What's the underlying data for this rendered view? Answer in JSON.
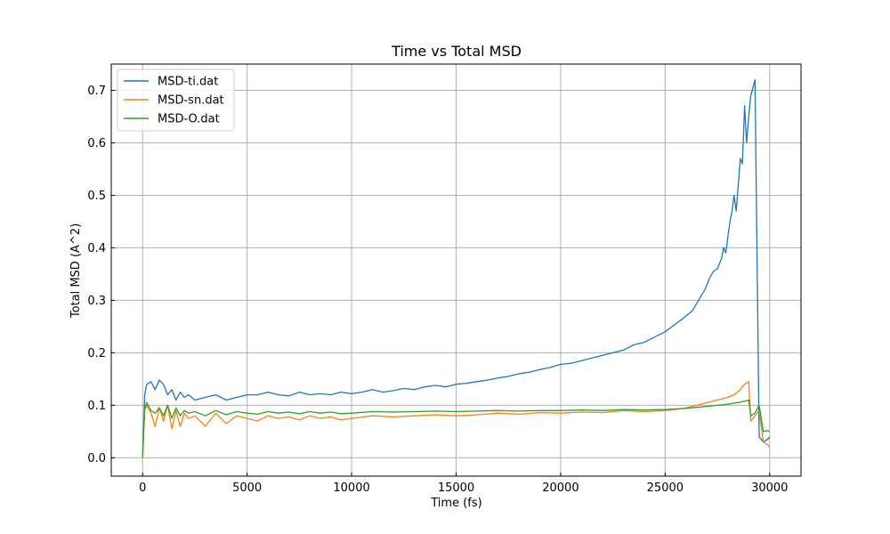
{
  "chart_data": {
    "type": "line",
    "title": "Time vs Total MSD",
    "xlabel": "Time (fs)",
    "ylabel": "Total MSD (A^2)",
    "xlim": [
      -1500,
      31500
    ],
    "ylim": [
      -0.035,
      0.75
    ],
    "xticks": [
      0,
      5000,
      10000,
      15000,
      20000,
      25000,
      30000
    ],
    "xtick_labels": [
      "0",
      "5000",
      "10000",
      "15000",
      "20000",
      "25000",
      "30000"
    ],
    "yticks": [
      0.0,
      0.1,
      0.2,
      0.3,
      0.4,
      0.5,
      0.6,
      0.7
    ],
    "ytick_labels": [
      "0.0",
      "0.1",
      "0.2",
      "0.3",
      "0.4",
      "0.5",
      "0.6",
      "0.7"
    ],
    "grid": true,
    "legend_position": "upper-left",
    "series": [
      {
        "name": "MSD-ti.dat",
        "color": "#1f77b4",
        "x": [
          0,
          100,
          200,
          400,
          600,
          800,
          1000,
          1200,
          1400,
          1600,
          1800,
          2000,
          2200,
          2500,
          3000,
          3500,
          4000,
          4500,
          5000,
          5500,
          6000,
          6500,
          7000,
          7500,
          8000,
          8500,
          9000,
          9500,
          10000,
          10500,
          11000,
          11500,
          12000,
          12500,
          13000,
          13500,
          14000,
          14500,
          15000,
          15500,
          16000,
          16500,
          17000,
          17500,
          18000,
          18500,
          19000,
          19500,
          20000,
          20500,
          21000,
          21500,
          22000,
          22500,
          23000,
          23500,
          24000,
          24500,
          25000,
          25500,
          26000,
          26300,
          26600,
          26900,
          27100,
          27300,
          27500,
          27700,
          27800,
          27900,
          28000,
          28100,
          28200,
          28300,
          28400,
          28500,
          28600,
          28700,
          28800,
          28900,
          29000,
          29100,
          29300,
          29500,
          29700,
          29900,
          30000
        ],
        "values": [
          0.0,
          0.12,
          0.14,
          0.145,
          0.13,
          0.148,
          0.14,
          0.12,
          0.13,
          0.11,
          0.125,
          0.115,
          0.12,
          0.11,
          0.115,
          0.12,
          0.11,
          0.115,
          0.12,
          0.12,
          0.125,
          0.12,
          0.118,
          0.125,
          0.12,
          0.122,
          0.12,
          0.125,
          0.122,
          0.125,
          0.13,
          0.125,
          0.128,
          0.132,
          0.13,
          0.135,
          0.138,
          0.135,
          0.14,
          0.142,
          0.145,
          0.148,
          0.152,
          0.155,
          0.16,
          0.163,
          0.168,
          0.172,
          0.178,
          0.18,
          0.185,
          0.19,
          0.195,
          0.2,
          0.205,
          0.215,
          0.22,
          0.23,
          0.24,
          0.255,
          0.27,
          0.28,
          0.3,
          0.32,
          0.34,
          0.355,
          0.36,
          0.38,
          0.4,
          0.39,
          0.42,
          0.45,
          0.47,
          0.5,
          0.47,
          0.52,
          0.57,
          0.56,
          0.67,
          0.6,
          0.65,
          0.69,
          0.72,
          0.04,
          0.03,
          0.035,
          0.04
        ]
      },
      {
        "name": "MSD-sn.dat",
        "color": "#ff7f0e",
        "x": [
          0,
          100,
          200,
          400,
          600,
          800,
          1000,
          1200,
          1400,
          1600,
          1800,
          2000,
          2200,
          2500,
          3000,
          3500,
          4000,
          4500,
          5000,
          5500,
          6000,
          6500,
          7000,
          7500,
          8000,
          8500,
          9000,
          9500,
          10000,
          11000,
          12000,
          13000,
          14000,
          15000,
          16000,
          17000,
          18000,
          19000,
          20000,
          21000,
          22000,
          23000,
          24000,
          25000,
          25500,
          26000,
          26500,
          27000,
          27500,
          28000,
          28300,
          28600,
          28800,
          29000,
          29100,
          29300,
          29500,
          29700,
          29900,
          30000
        ],
        "values": [
          0.0,
          0.09,
          0.1,
          0.085,
          0.06,
          0.095,
          0.07,
          0.1,
          0.055,
          0.09,
          0.06,
          0.085,
          0.075,
          0.08,
          0.06,
          0.085,
          0.065,
          0.08,
          0.075,
          0.07,
          0.08,
          0.075,
          0.078,
          0.072,
          0.08,
          0.075,
          0.078,
          0.072,
          0.075,
          0.08,
          0.078,
          0.08,
          0.082,
          0.08,
          0.082,
          0.085,
          0.083,
          0.086,
          0.085,
          0.087,
          0.086,
          0.09,
          0.088,
          0.09,
          0.092,
          0.095,
          0.1,
          0.105,
          0.11,
          0.115,
          0.12,
          0.13,
          0.14,
          0.145,
          0.07,
          0.08,
          0.09,
          0.03,
          0.025,
          0.02
        ]
      },
      {
        "name": "MSD-O.dat",
        "color": "#2ca02c",
        "x": [
          0,
          100,
          200,
          400,
          600,
          800,
          1000,
          1200,
          1400,
          1600,
          1800,
          2000,
          2200,
          2500,
          3000,
          3500,
          4000,
          4500,
          5000,
          5500,
          6000,
          6500,
          7000,
          7500,
          8000,
          8500,
          9000,
          9500,
          10000,
          11000,
          12000,
          13000,
          14000,
          15000,
          16000,
          17000,
          18000,
          19000,
          20000,
          21000,
          22000,
          23000,
          24000,
          25000,
          25500,
          26000,
          26500,
          27000,
          27500,
          28000,
          28300,
          28600,
          28800,
          29000,
          29100,
          29300,
          29500,
          29700,
          29900,
          30000
        ],
        "values": [
          0.0,
          0.095,
          0.105,
          0.09,
          0.085,
          0.095,
          0.08,
          0.1,
          0.075,
          0.095,
          0.08,
          0.09,
          0.085,
          0.088,
          0.08,
          0.09,
          0.082,
          0.088,
          0.085,
          0.083,
          0.088,
          0.085,
          0.087,
          0.084,
          0.088,
          0.085,
          0.087,
          0.084,
          0.085,
          0.088,
          0.087,
          0.088,
          0.089,
          0.088,
          0.089,
          0.09,
          0.089,
          0.09,
          0.09,
          0.091,
          0.09,
          0.092,
          0.091,
          0.092,
          0.093,
          0.094,
          0.096,
          0.098,
          0.1,
          0.102,
          0.104,
          0.106,
          0.108,
          0.11,
          0.08,
          0.085,
          0.1,
          0.05,
          0.052,
          0.05
        ]
      }
    ]
  }
}
